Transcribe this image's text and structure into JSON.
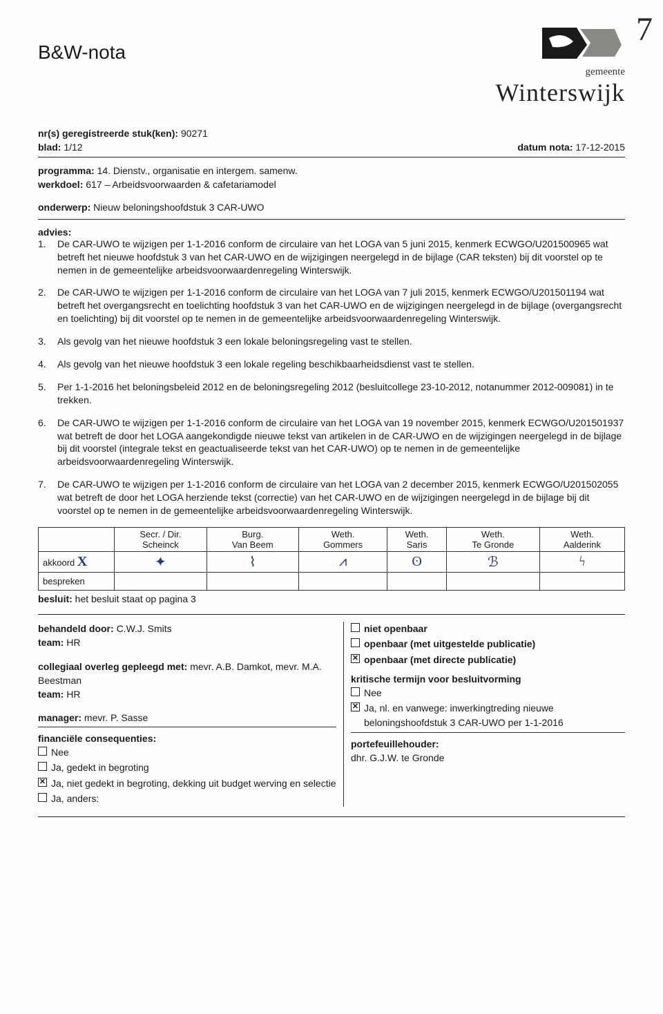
{
  "corner_mark": "7",
  "doc_title": "B&W-nota",
  "logo": {
    "top_text": "gemeente",
    "main_text": "Winterswijk",
    "colors": {
      "dark": "#1a1a1a",
      "gray": "#8a8a85",
      "accent": "#6b6b60"
    }
  },
  "meta": {
    "nrs_label": "nr(s) geregistreerde stuk(ken):",
    "nrs_value": "90271",
    "blad_label": "blad:",
    "blad_value": "1/12",
    "datum_label": "datum nota:",
    "datum_value": "17-12-2015",
    "programma_label": "programma:",
    "programma_value": "14. Dienstv., organisatie en intergem. samenw.",
    "werkdoel_label": "werkdoel:",
    "werkdoel_value": "617 – Arbeidsvoorwaarden & cafetariamodel",
    "onderwerp_label": "onderwerp:",
    "onderwerp_value": "Nieuw beloningshoofdstuk 3 CAR-UWO"
  },
  "advies_label": "advies:",
  "advies": [
    {
      "n": "1.",
      "t": "De CAR-UWO te wijzigen per 1-1-2016 conform de circulaire van het LOGA van 5 juni 2015, kenmerk ECWGO/U201500965 wat betreft het nieuwe hoofdstuk 3 van het CAR-UWO en de wijzigingen neergelegd in de bijlage (CAR teksten) bij dit voorstel op te nemen in de gemeentelijke arbeidsvoorwaardenregeling Winterswijk."
    },
    {
      "n": "2.",
      "t": "De CAR-UWO te wijzigen per 1-1-2016 conform de circulaire van het LOGA van 7 juli 2015, kenmerk ECWGO/U201501194 wat betreft het overgangsrecht en toelichting hoofdstuk 3 van het CAR-UWO en de wijzigingen neergelegd in de bijlage (overgangsrecht en toelichting) bij dit voorstel op te nemen in de gemeentelijke arbeidsvoorwaardenregeling Winterswijk."
    },
    {
      "n": "3.",
      "t": "Als gevolg van het nieuwe hoofdstuk 3 een lokale beloningsregeling vast te stellen."
    },
    {
      "n": "4.",
      "t": "Als gevolg van het nieuwe hoofdstuk 3 een lokale regeling beschikbaarheidsdienst vast te stellen."
    },
    {
      "n": "5.",
      "t": "Per 1-1-2016 het beloningsbeleid 2012 en de beloningsregeling 2012 (besluitcollege 23-10-2012, notanummer 2012-009081) in te trekken."
    },
    {
      "n": "6.",
      "t": "De CAR-UWO te wijzigen per 1-1-2016 conform de circulaire van het LOGA van 19 november 2015, kenmerk ECWGO/U201501937 wat betreft de door het LOGA aangekondigde nieuwe tekst van artikelen in de CAR-UWO en de wijzigingen neergelegd in de bijlage bij dit voorstel (integrale tekst en geactualiseerde tekst van het CAR-UWO) op te nemen in de gemeentelijke arbeidsvoorwaardenregeling Winterswijk."
    },
    {
      "n": "7.",
      "t": "De CAR-UWO te wijzigen per 1-1-2016 conform de circulaire van het LOGA van 2 december 2015, kenmerk ECWGO/U201502055 wat betreft de door het LOGA herziende tekst (correctie) van het CAR-UWO en de wijzigingen neergelegd in de bijlage bij dit voorstel op te nemen in de gemeentelijke arbeidsvoorwaardenregeling Winterswijk."
    }
  ],
  "sig_table": {
    "cols": [
      {
        "l1": "Secr. / Dir.",
        "l2": "Scheinck"
      },
      {
        "l1": "Burg.",
        "l2": "Van Beem"
      },
      {
        "l1": "Weth.",
        "l2": "Gommers"
      },
      {
        "l1": "Weth.",
        "l2": "Saris"
      },
      {
        "l1": "Weth.",
        "l2": "Te Gronde"
      },
      {
        "l1": "Weth.",
        "l2": "Aalderink"
      }
    ],
    "row_akkoord": "akkoord",
    "row_bespreken": "bespreken",
    "akkoord_mark": "X",
    "signatures": [
      "✦",
      "⌇",
      "⩘",
      "ʘ",
      "ℬ",
      "ϟ"
    ]
  },
  "besluit_label": "besluit:",
  "besluit_value": "het besluit staat op pagina 3",
  "left_col": {
    "behandeld_label": "behandeld door:",
    "behandeld_value": "C.W.J. Smits",
    "team_label": "team:",
    "team_value": "HR",
    "collegiaal_label": "collegiaal overleg gepleegd met:",
    "collegiaal_value": "mevr. A.B. Damkot, mevr. M.A. Beestman",
    "team2_label": "team:",
    "team2_value": "HR",
    "manager_label": "manager:",
    "manager_value": "mevr. P. Sasse",
    "fin_label": "financiële consequenties:",
    "fin_options": [
      {
        "checked": false,
        "text": "Nee"
      },
      {
        "checked": false,
        "text": "Ja, gedekt in begroting"
      },
      {
        "checked": true,
        "text": "Ja, niet gedekt in begroting, dekking uit budget werving en selectie"
      },
      {
        "checked": false,
        "text": "Ja, anders:"
      }
    ]
  },
  "right_col": {
    "openbaar_options": [
      {
        "checked": false,
        "text": "niet openbaar"
      },
      {
        "checked": false,
        "text": "openbaar (met uitgestelde publicatie)"
      },
      {
        "checked": true,
        "text": "openbaar (met directe publicatie)"
      }
    ],
    "termijn_label": "kritische termijn voor besluitvorming",
    "termijn_options": [
      {
        "checked": false,
        "text": "Nee"
      },
      {
        "checked": true,
        "text": "Ja, nl. en vanwege: inwerkingtreding nieuwe beloningshoofdstuk 3 CAR-UWO per 1-1-2016"
      }
    ],
    "portef_label": "portefeuillehouder:",
    "portef_value": "dhr. G.J.W. te Gronde"
  }
}
